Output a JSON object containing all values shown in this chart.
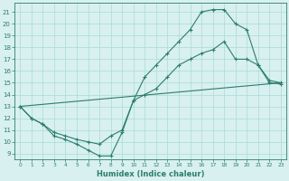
{
  "line1_x": [
    0,
    1,
    2,
    3,
    4,
    5,
    6,
    7,
    8,
    9,
    10,
    11,
    12,
    13,
    14,
    15,
    16,
    17,
    18,
    19,
    20,
    21,
    22,
    23
  ],
  "line1_y": [
    13,
    12,
    11.5,
    10.5,
    10.2,
    9.8,
    9.3,
    8.8,
    8.8,
    10.8,
    13.5,
    15.5,
    16.5,
    17.5,
    18.5,
    19.5,
    21.0,
    21.2,
    21.2,
    20.0,
    19.5,
    16.5,
    15.0,
    14.9
  ],
  "line2_x": [
    0,
    1,
    2,
    3,
    4,
    5,
    6,
    7,
    8,
    9,
    10,
    11,
    12,
    13,
    14,
    15,
    16,
    17,
    18,
    19,
    20,
    21,
    22,
    23
  ],
  "line2_y": [
    13,
    12,
    11.5,
    10.8,
    10.5,
    10.2,
    10.0,
    9.8,
    10.5,
    11.0,
    13.5,
    14.0,
    14.5,
    15.5,
    16.5,
    17.0,
    17.5,
    17.8,
    18.5,
    17.0,
    17.0,
    16.5,
    15.2,
    15.0
  ],
  "line3_x": [
    0,
    23
  ],
  "line3_y": [
    13,
    15
  ],
  "line_color": "#2d7d6e",
  "bg_color": "#d8f0f0",
  "grid_color": "#aadada",
  "xlabel": "Humidex (Indice chaleur)",
  "xlim": [
    -0.5,
    23.5
  ],
  "ylim": [
    8.5,
    21.8
  ],
  "yticks": [
    9,
    10,
    11,
    12,
    13,
    14,
    15,
    16,
    17,
    18,
    19,
    20,
    21
  ],
  "xticks": [
    0,
    1,
    2,
    3,
    4,
    5,
    6,
    7,
    8,
    9,
    10,
    11,
    12,
    13,
    14,
    15,
    16,
    17,
    18,
    19,
    20,
    21,
    22,
    23
  ]
}
